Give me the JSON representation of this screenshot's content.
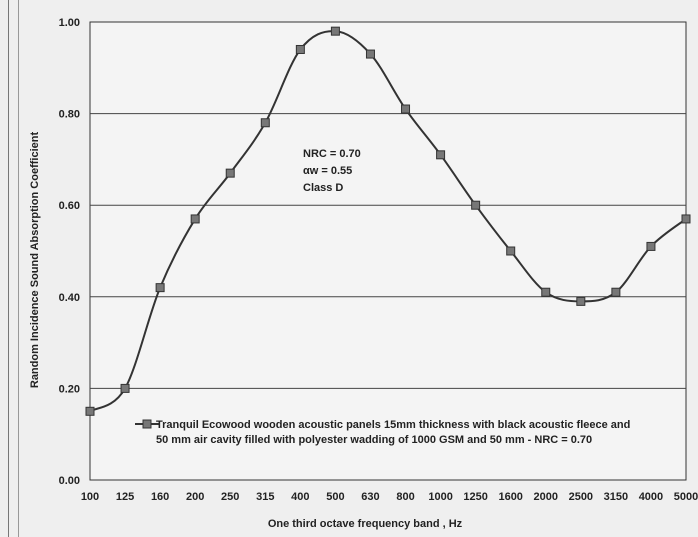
{
  "chart_data": {
    "type": "line",
    "title": "",
    "xlabel": "One third octave frequency band , Hz",
    "ylabel": "Random Incidence Sound Absorption Coefficient",
    "categories": [
      "100",
      "125",
      "160",
      "200",
      "250",
      "315",
      "400",
      "500",
      "630",
      "800",
      "1000",
      "1250",
      "1600",
      "2000",
      "2500",
      "3150",
      "4000",
      "5000"
    ],
    "ylim": [
      0,
      1
    ],
    "yticks": [
      "0.00",
      "0.20",
      "0.40",
      "0.60",
      "0.80",
      "1.00"
    ],
    "grid": true,
    "legend_position": "lower-right",
    "series": [
      {
        "name": "Tranquil Ecowood wooden acoustic panels 15mm thickness with black acoustic fleece and 50 mm air cavity filled with polyester wadding  of 1000 GSM and 50 mm - NRC = 0.70",
        "legend_lines": [
          "Tranquil Ecowood wooden acoustic panels 15mm thickness with black acoustic fleece and",
          "50 mm air cavity filled with polyester wadding  of 1000 GSM and 50 mm - NRC = 0.70"
        ],
        "values": [
          0.15,
          0.2,
          0.42,
          0.57,
          0.67,
          0.78,
          0.94,
          0.98,
          0.93,
          0.81,
          0.71,
          0.6,
          0.5,
          0.41,
          0.39,
          0.41,
          0.51,
          0.57
        ],
        "color": "#333333"
      }
    ],
    "annotations": [
      "NRC = 0.70",
      "αw = 0.55",
      "Class D"
    ]
  }
}
